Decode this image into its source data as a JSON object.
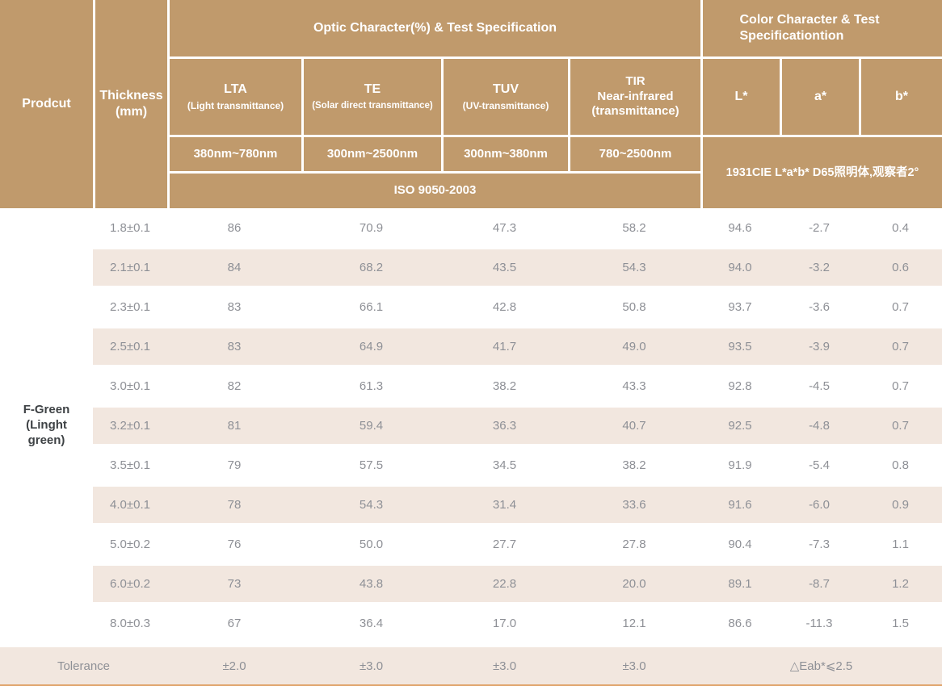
{
  "header": {
    "product_label": "Prodcut",
    "thickness_label": "Thickness (mm)",
    "optic_group_title": "Optic Character(%) & Test Specification",
    "color_group_title": "Color Character & Test Specificationtion",
    "optic_columns": [
      {
        "abbr": "LTA",
        "sub": "(Light transmittance)",
        "range": "380nm~780nm"
      },
      {
        "abbr": "TE",
        "sub": "(Solar direct transmittance)",
        "range": "300nm~2500nm"
      },
      {
        "abbr": "TUV",
        "sub": "(UV-transmittance)",
        "range": "300nm~380nm"
      },
      {
        "abbr": "TIR",
        "sub": "Near-infrared (transmittance)",
        "range": "780~2500nm"
      }
    ],
    "color_columns": [
      "L*",
      "a*",
      "b*"
    ],
    "optic_standard": "ISO 9050-2003",
    "color_standard": "1931CIE L*a*b*  D65照明体,观察者2°"
  },
  "product_name": "F-Green (Linght green)",
  "table": {
    "rows": [
      {
        "thickness": "1.8±0.1",
        "lta": "86",
        "te": "70.9",
        "tuv": "47.3",
        "tir": "58.2",
        "L": "94.6",
        "a": "-2.7",
        "b": "0.4"
      },
      {
        "thickness": "2.1±0.1",
        "lta": "84",
        "te": "68.2",
        "tuv": "43.5",
        "tir": "54.3",
        "L": "94.0",
        "a": "-3.2",
        "b": "0.6"
      },
      {
        "thickness": "2.3±0.1",
        "lta": "83",
        "te": "66.1",
        "tuv": "42.8",
        "tir": "50.8",
        "L": "93.7",
        "a": "-3.6",
        "b": "0.7"
      },
      {
        "thickness": "2.5±0.1",
        "lta": "83",
        "te": "64.9",
        "tuv": "41.7",
        "tir": "49.0",
        "L": "93.5",
        "a": "-3.9",
        "b": "0.7"
      },
      {
        "thickness": "3.0±0.1",
        "lta": "82",
        "te": "61.3",
        "tuv": "38.2",
        "tir": "43.3",
        "L": "92.8",
        "a": "-4.5",
        "b": "0.7"
      },
      {
        "thickness": "3.2±0.1",
        "lta": "81",
        "te": "59.4",
        "tuv": "36.3",
        "tir": "40.7",
        "L": "92.5",
        "a": "-4.8",
        "b": "0.7"
      },
      {
        "thickness": "3.5±0.1",
        "lta": "79",
        "te": "57.5",
        "tuv": "34.5",
        "tir": "38.2",
        "L": "91.9",
        "a": "-5.4",
        "b": "0.8"
      },
      {
        "thickness": "4.0±0.1",
        "lta": "78",
        "te": "54.3",
        "tuv": "31.4",
        "tir": "33.6",
        "L": "91.6",
        "a": "-6.0",
        "b": "0.9"
      },
      {
        "thickness": "5.0±0.2",
        "lta": "76",
        "te": "50.0",
        "tuv": "27.7",
        "tir": "27.8",
        "L": "90.4",
        "a": "-7.3",
        "b": "1.1"
      },
      {
        "thickness": "6.0±0.2",
        "lta": "73",
        "te": "43.8",
        "tuv": "22.8",
        "tir": "20.0",
        "L": "89.1",
        "a": "-8.7",
        "b": "1.2"
      },
      {
        "thickness": "8.0±0.3",
        "lta": "67",
        "te": "36.4",
        "tuv": "17.0",
        "tir": "12.1",
        "L": "86.6",
        "a": "-11.3",
        "b": "1.5"
      }
    ]
  },
  "tolerance": {
    "label": "Tolerance",
    "lta": "±2.0",
    "te": "±3.0",
    "tuv": "±3.0",
    "tir": "±3.0",
    "color": "△Eab*⩽2.5"
  },
  "colors": {
    "header_bg": "#c09a6c",
    "stripe_bg": "#f2e7df",
    "bottom_border": "#e0a46c",
    "data_text": "#8e9096",
    "product_text": "#3e4245"
  }
}
